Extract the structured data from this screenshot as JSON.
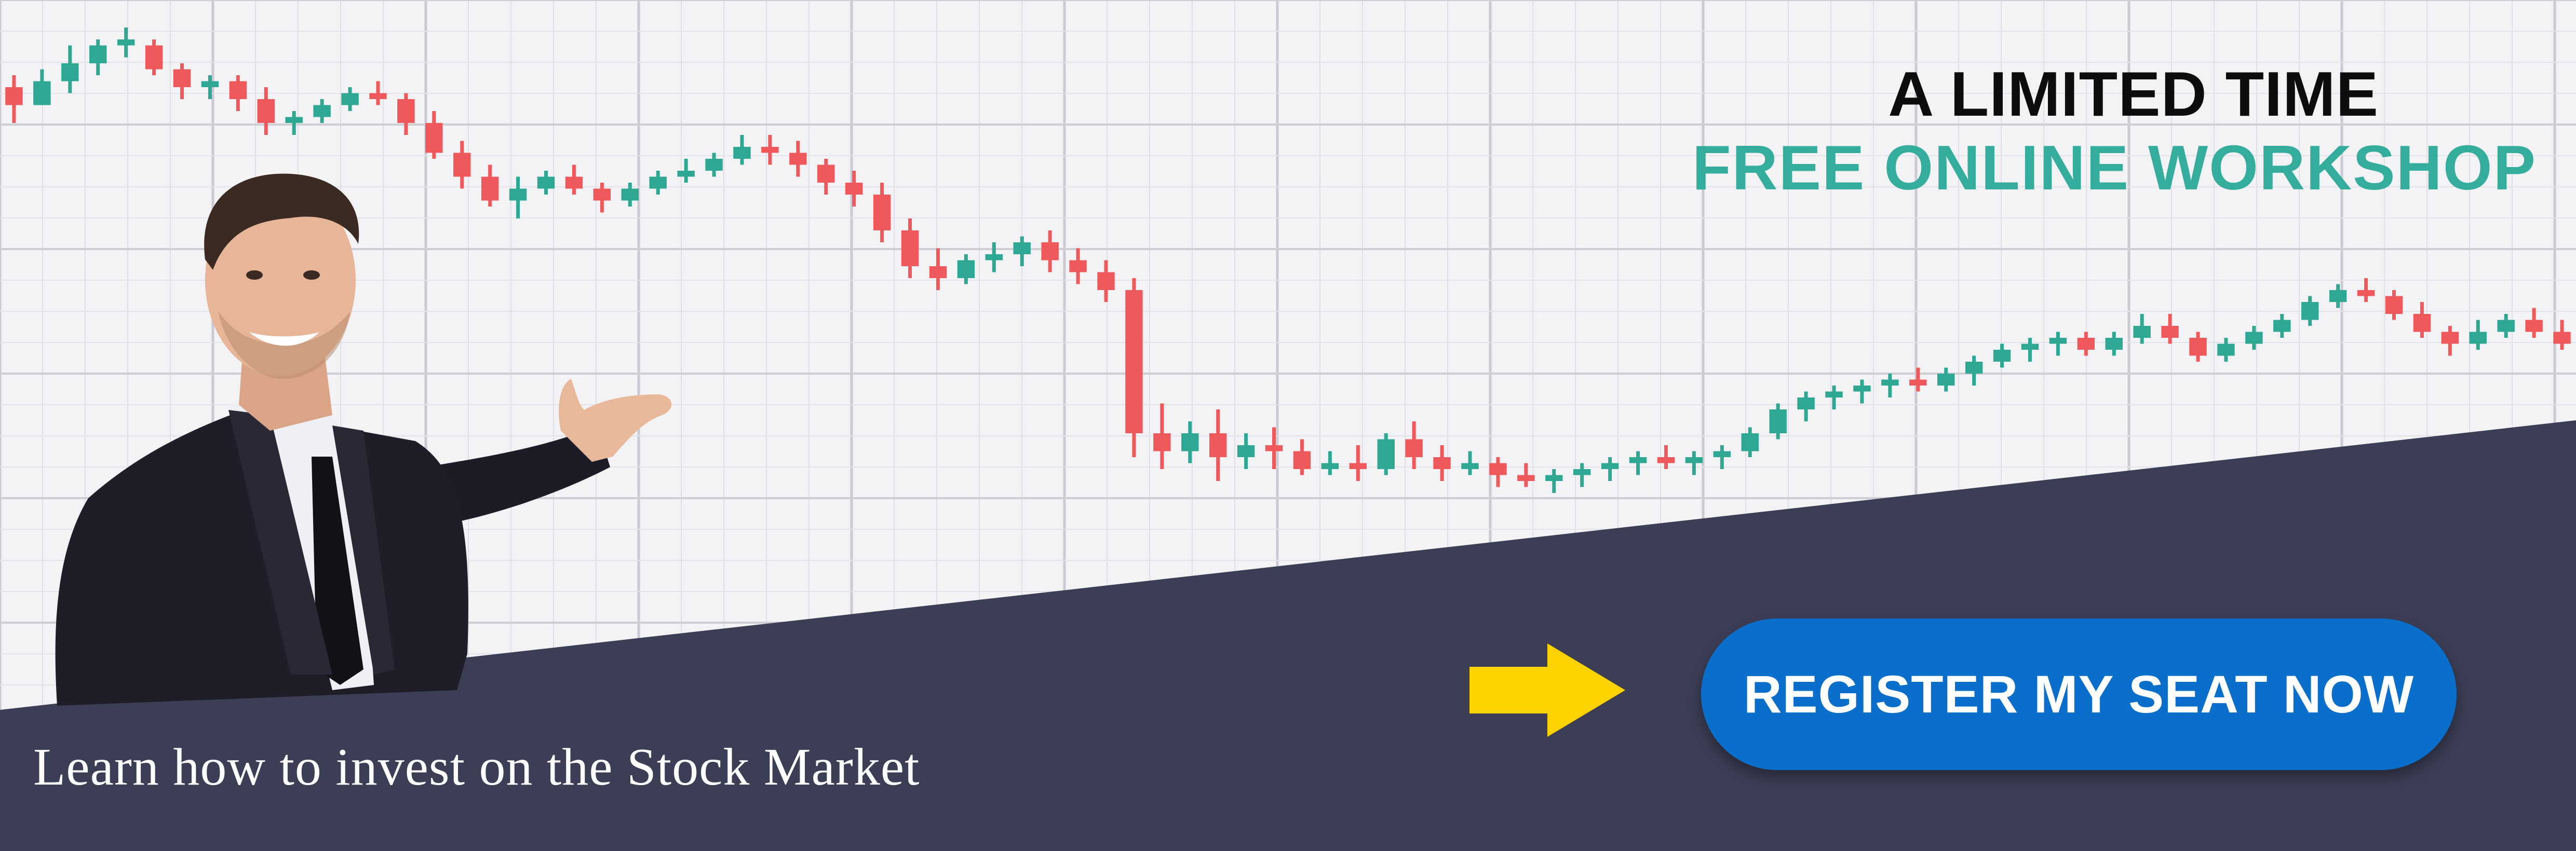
{
  "banner": {
    "headline_line1": "A LIMITED TIME",
    "headline_line2": "FREE ONLINE WORKSHOP",
    "cta_label": "REGISTER MY SEAT NOW",
    "tagline": "Learn how to invest on the Stock Market"
  },
  "colors": {
    "accent_teal": "#35ad9d",
    "bear_red": "#f0595c",
    "bull_teal": "#2ea892",
    "panel_navy": "#3b3e55",
    "cta_blue": "#0a6ecb",
    "arrow_yellow": "#fcd300",
    "grid_bg": "#f3f3f6"
  },
  "icons": {
    "arrow": "right-arrow-icon",
    "presenter": "presenter-man-image"
  },
  "chart_data": {
    "type": "candlestick",
    "title": "",
    "xlabel": "",
    "ylabel": "",
    "grid": true,
    "ylim": [
      0,
      100
    ],
    "series": [
      {
        "values": [
          [
            88,
            90,
            82,
            85
          ],
          [
            85,
            91,
            85,
            89
          ],
          [
            89,
            95,
            87,
            92
          ],
          [
            92,
            96,
            90,
            95
          ],
          [
            95,
            98,
            93,
            96
          ],
          [
            95,
            96,
            90,
            91
          ],
          [
            91,
            92,
            86,
            88
          ],
          [
            88,
            90,
            86,
            89
          ],
          [
            89,
            90,
            84,
            86
          ],
          [
            86,
            88,
            80,
            82
          ],
          [
            82,
            84,
            80,
            83
          ],
          [
            83,
            86,
            82,
            85
          ],
          [
            85,
            88,
            84,
            87
          ],
          [
            87,
            89,
            85,
            86
          ],
          [
            86,
            87,
            80,
            82
          ],
          [
            82,
            84,
            76,
            77
          ],
          [
            77,
            79,
            71,
            73
          ],
          [
            73,
            75,
            68,
            69
          ],
          [
            69,
            73,
            66,
            71
          ],
          [
            71,
            74,
            70,
            73
          ],
          [
            73,
            75,
            70,
            71
          ],
          [
            71,
            72,
            67,
            69
          ],
          [
            69,
            72,
            68,
            71
          ],
          [
            71,
            74,
            70,
            73
          ],
          [
            73,
            76,
            72,
            74
          ],
          [
            74,
            77,
            73,
            76
          ],
          [
            76,
            80,
            75,
            78
          ],
          [
            78,
            80,
            75,
            77
          ],
          [
            77,
            79,
            73,
            75
          ],
          [
            75,
            76,
            70,
            72
          ],
          [
            72,
            74,
            68,
            70
          ],
          [
            70,
            72,
            62,
            64
          ],
          [
            64,
            66,
            56,
            58
          ],
          [
            58,
            61,
            54,
            56
          ],
          [
            56,
            60,
            55,
            59
          ],
          [
            59,
            62,
            57,
            60
          ],
          [
            60,
            63,
            58,
            62
          ],
          [
            62,
            64,
            57,
            59
          ],
          [
            59,
            61,
            55,
            57
          ],
          [
            57,
            59,
            52,
            54
          ],
          [
            54,
            56,
            26,
            30
          ],
          [
            30,
            35,
            24,
            27
          ],
          [
            27,
            32,
            25,
            30
          ],
          [
            30,
            34,
            22,
            26
          ],
          [
            26,
            30,
            24,
            28
          ],
          [
            28,
            31,
            24,
            27
          ],
          [
            27,
            29,
            23,
            24
          ],
          [
            24,
            27,
            23,
            25
          ],
          [
            25,
            28,
            22,
            24
          ],
          [
            24,
            30,
            23,
            29
          ],
          [
            29,
            32,
            24,
            26
          ],
          [
            26,
            28,
            22,
            24
          ],
          [
            24,
            27,
            23,
            25
          ],
          [
            25,
            26,
            21,
            23
          ],
          [
            23,
            25,
            21,
            22
          ],
          [
            22,
            24,
            20,
            23
          ],
          [
            23,
            25,
            21,
            24
          ],
          [
            24,
            26,
            22,
            25
          ],
          [
            25,
            27,
            23,
            26
          ],
          [
            26,
            28,
            24,
            25
          ],
          [
            25,
            27,
            23,
            26
          ],
          [
            26,
            28,
            24,
            27
          ],
          [
            27,
            31,
            26,
            30
          ],
          [
            30,
            35,
            29,
            34
          ],
          [
            34,
            37,
            32,
            36
          ],
          [
            36,
            38,
            34,
            37
          ],
          [
            37,
            39,
            35,
            38
          ],
          [
            38,
            40,
            36,
            39
          ],
          [
            39,
            41,
            37,
            38
          ],
          [
            38,
            41,
            37,
            40
          ],
          [
            40,
            43,
            38,
            42
          ],
          [
            42,
            45,
            41,
            44
          ],
          [
            44,
            46,
            42,
            45
          ],
          [
            45,
            47,
            43,
            46
          ],
          [
            46,
            47,
            43,
            44
          ],
          [
            44,
            47,
            43,
            46
          ],
          [
            46,
            50,
            45,
            48
          ],
          [
            48,
            50,
            45,
            46
          ],
          [
            46,
            47,
            42,
            43
          ],
          [
            43,
            46,
            42,
            45
          ],
          [
            45,
            48,
            44,
            47
          ],
          [
            47,
            50,
            46,
            49
          ],
          [
            49,
            53,
            48,
            52
          ],
          [
            52,
            55,
            51,
            54
          ],
          [
            54,
            56,
            52,
            53
          ],
          [
            53,
            54,
            49,
            50
          ],
          [
            50,
            52,
            46,
            47
          ],
          [
            47,
            48,
            43,
            45
          ],
          [
            45,
            49,
            44,
            47
          ],
          [
            47,
            50,
            46,
            49
          ],
          [
            49,
            51,
            46,
            47
          ],
          [
            47,
            49,
            44,
            45
          ]
        ]
      }
    ]
  }
}
